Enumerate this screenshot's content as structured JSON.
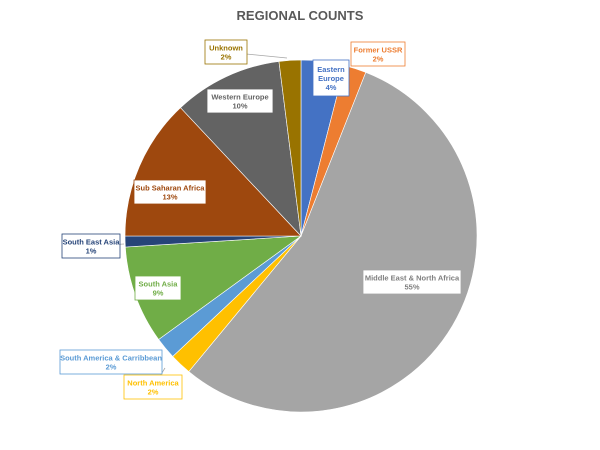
{
  "chart_data": {
    "type": "pie",
    "title": "REGIONAL COUNTS",
    "categories": [
      "Eastern Europe",
      "Former USSR",
      "Middle East & North Africa",
      "North America",
      "South America & Carribbean",
      "South Asia",
      "South East Asia",
      "Sub Saharan Africa",
      "Western Europe",
      "Unknown"
    ],
    "values": [
      4,
      2,
      55,
      2,
      2,
      9,
      1,
      13,
      10,
      2
    ],
    "labels": [
      "4%",
      "2%",
      "55%",
      "2%",
      "2%",
      "9%",
      "1%",
      "13%",
      "10%",
      "2%"
    ],
    "colors": [
      "#4472c4",
      "#ed7d31",
      "#a5a5a5",
      "#ffc000",
      "#5b9bd5",
      "#70ad47",
      "#264478",
      "#9e480e",
      "#636363",
      "#997300"
    ],
    "legend": "none",
    "start_angle_deg": 0,
    "direction": "clockwise"
  }
}
